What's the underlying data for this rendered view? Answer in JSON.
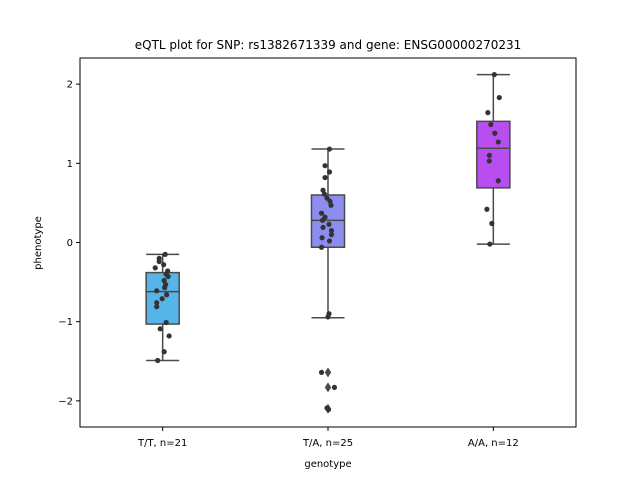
{
  "chart_data": {
    "type": "box",
    "title": "eQTL plot for SNP: rs1382671339 and gene: ENSG00000270231",
    "xlabel": "genotype",
    "ylabel": "phenotype",
    "ylim": [
      -2.33,
      2.33
    ],
    "yticks": [
      -2,
      -1,
      0,
      1,
      2
    ],
    "yticklabels": [
      "−2",
      "−1",
      "0",
      "1",
      "2"
    ],
    "categories": [
      "T/T, n=21",
      "T/A, n=25",
      "A/A, n=12"
    ],
    "colors": {
      "boxes": [
        "#56b4e9",
        "#8d8df0",
        "#b84ef0"
      ],
      "box_edge": "#4a4a4a",
      "points": "#333333"
    },
    "grid": false,
    "boxes": [
      {
        "category": "T/T, n=21",
        "whisker_low": -1.49,
        "q1": -1.03,
        "median": -0.62,
        "q3": -0.38,
        "whisker_high": -0.15,
        "outliers": []
      },
      {
        "category": "T/A, n=25",
        "whisker_low": -0.95,
        "q1": -0.06,
        "median": 0.28,
        "q3": 0.6,
        "whisker_high": 1.18,
        "outliers": [
          -1.64,
          -1.83,
          -2.1
        ]
      },
      {
        "category": "A/A, n=12",
        "whisker_low": -0.02,
        "q1": 0.69,
        "median": 1.19,
        "q3": 1.53,
        "whisker_high": 2.12,
        "outliers": []
      }
    ],
    "points": [
      [
        {
          "dx": 0.05,
          "y": -0.15
        },
        {
          "dx": -0.07,
          "y": -0.2
        },
        {
          "dx": -0.07,
          "y": -0.24
        },
        {
          "dx": 0.02,
          "y": -0.28
        },
        {
          "dx": -0.15,
          "y": -0.32
        },
        {
          "dx": 0.1,
          "y": -0.36
        },
        {
          "dx": 0.07,
          "y": -0.4
        },
        {
          "dx": 0.11,
          "y": -0.43
        },
        {
          "dx": 0.03,
          "y": -0.48
        },
        {
          "dx": 0.06,
          "y": -0.53
        },
        {
          "dx": 0.04,
          "y": -0.57
        },
        {
          "dx": -0.12,
          "y": -0.61
        },
        {
          "dx": 0.08,
          "y": -0.66
        },
        {
          "dx": -0.01,
          "y": -0.71
        },
        {
          "dx": -0.12,
          "y": -0.76
        },
        {
          "dx": -0.12,
          "y": -0.81
        },
        {
          "dx": 0.07,
          "y": -1.01
        },
        {
          "dx": -0.05,
          "y": -1.09
        },
        {
          "dx": 0.13,
          "y": -1.18
        },
        {
          "dx": 0.03,
          "y": -1.38
        },
        {
          "dx": -0.1,
          "y": -1.49
        }
      ],
      [
        {
          "dx": 0.03,
          "y": 1.18
        },
        {
          "dx": -0.06,
          "y": 0.97
        },
        {
          "dx": 0.03,
          "y": 0.89
        },
        {
          "dx": -0.06,
          "y": 0.82
        },
        {
          "dx": -0.1,
          "y": 0.66
        },
        {
          "dx": -0.07,
          "y": 0.61
        },
        {
          "dx": -0.02,
          "y": 0.56
        },
        {
          "dx": 0.04,
          "y": 0.52
        },
        {
          "dx": 0.06,
          "y": 0.47
        },
        {
          "dx": -0.13,
          "y": 0.37
        },
        {
          "dx": -0.06,
          "y": 0.32
        },
        {
          "dx": -0.11,
          "y": 0.28
        },
        {
          "dx": 0.02,
          "y": 0.23
        },
        {
          "dx": -0.1,
          "y": 0.19
        },
        {
          "dx": 0.07,
          "y": 0.15
        },
        {
          "dx": 0.07,
          "y": 0.1
        },
        {
          "dx": -0.12,
          "y": 0.06
        },
        {
          "dx": 0.03,
          "y": 0.02
        },
        {
          "dx": -0.13,
          "y": -0.06
        },
        {
          "dx": 0.02,
          "y": -0.9
        },
        {
          "dx": 0.0,
          "y": -0.94
        },
        {
          "dx": -0.13,
          "y": -1.64
        },
        {
          "dx": 0.13,
          "y": -1.83
        },
        {
          "dx": -0.02,
          "y": -2.09
        },
        {
          "dx": 0.01,
          "y": -2.11
        }
      ],
      [
        {
          "dx": 0.02,
          "y": 2.12
        },
        {
          "dx": 0.12,
          "y": 1.83
        },
        {
          "dx": -0.11,
          "y": 1.64
        },
        {
          "dx": -0.05,
          "y": 1.49
        },
        {
          "dx": 0.03,
          "y": 1.38
        },
        {
          "dx": 0.1,
          "y": 1.27
        },
        {
          "dx": -0.08,
          "y": 1.1
        },
        {
          "dx": -0.08,
          "y": 1.03
        },
        {
          "dx": 0.1,
          "y": 0.78
        },
        {
          "dx": -0.13,
          "y": 0.42
        },
        {
          "dx": -0.03,
          "y": 0.24
        },
        {
          "dx": -0.07,
          "y": -0.02
        }
      ]
    ]
  }
}
